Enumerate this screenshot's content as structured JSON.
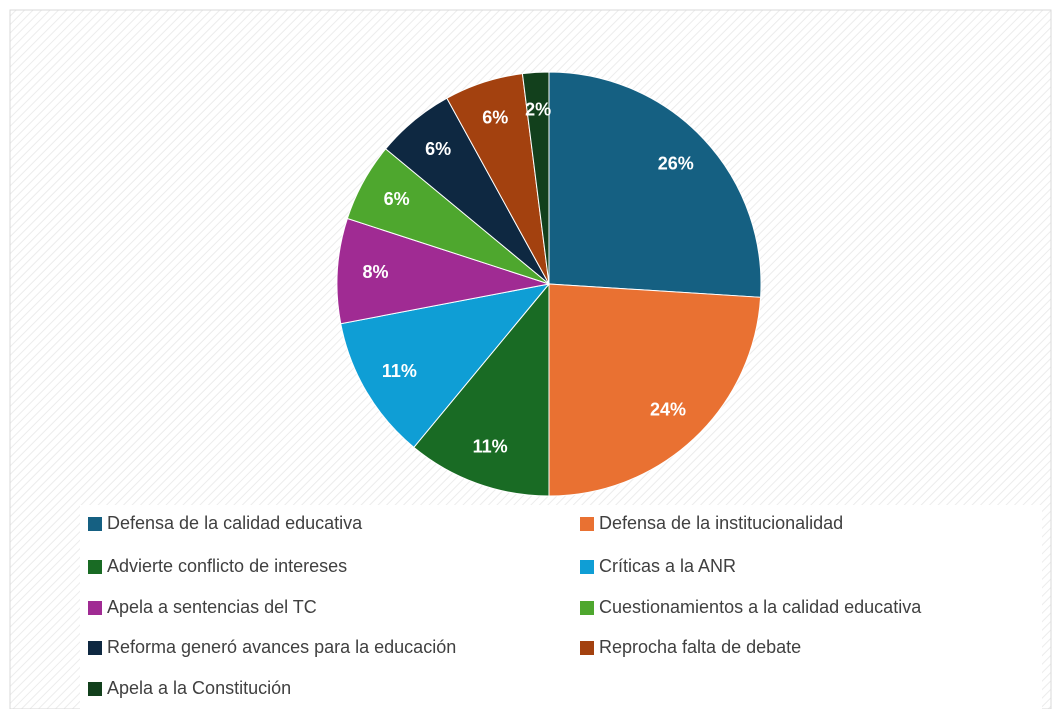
{
  "chart_data": {
    "type": "pie",
    "categories": [
      "Defensa de la calidad educativa",
      "Defensa de la institucionalidad",
      "Advierte conflicto de intereses",
      "Críticas a la ANR",
      "Apela a sentencias del TC",
      "Cuestionamientos a la calidad educativa",
      "Reforma generó avances para la educación",
      "Reprocha falta de debate",
      "Apela a la Constitución"
    ],
    "values": [
      26,
      24,
      11,
      11,
      8,
      6,
      6,
      6,
      2
    ],
    "value_labels": [
      "26%",
      "24%",
      "11%",
      "11%",
      "8%",
      "6%",
      "6%",
      "6%",
      "2%"
    ],
    "colors": [
      "#156082",
      "#e97132",
      "#196b24",
      "#0f9ed5",
      "#a02b93",
      "#4ea72e",
      "#0e2841",
      "#a3410f",
      "#12401c"
    ],
    "legend": "bottom"
  }
}
